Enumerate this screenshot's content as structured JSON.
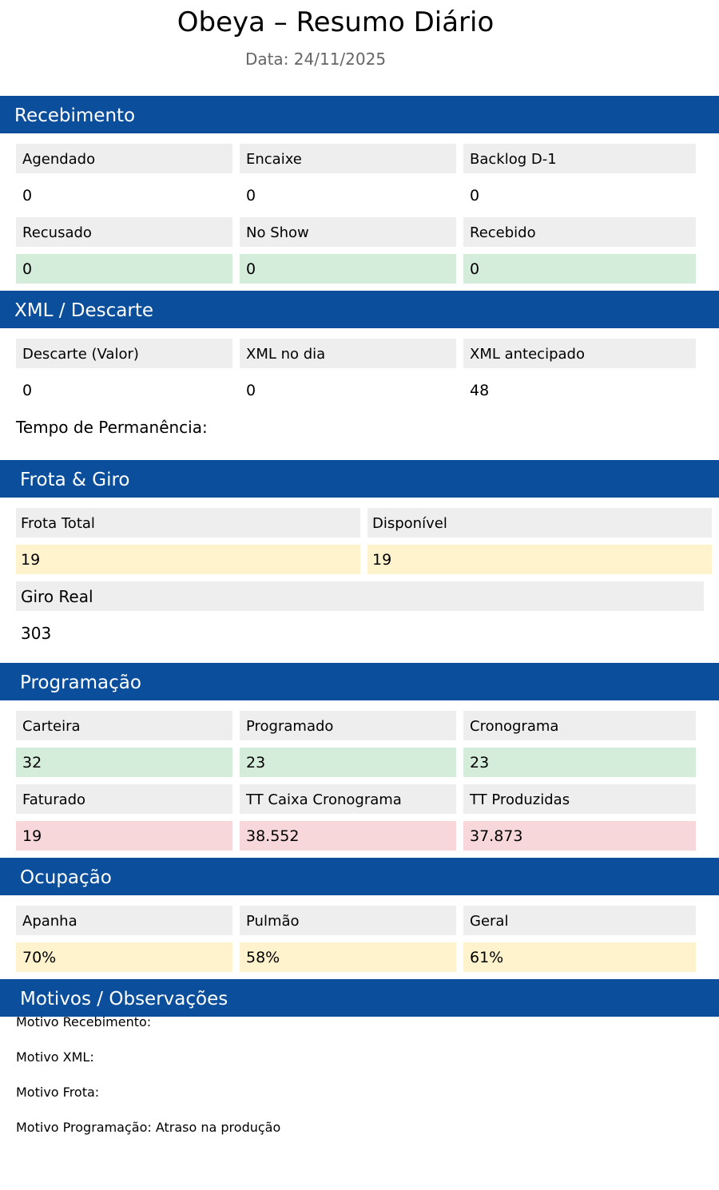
{
  "header": {
    "title": "Obeya – Resumo Diário",
    "date": "Data: 24/11/2025"
  },
  "recebimento": {
    "title": "Recebimento",
    "agendado": {
      "label": "Agendado",
      "value": "0"
    },
    "encaixe": {
      "label": "Encaixe",
      "value": "0"
    },
    "backlog": {
      "label": "Backlog D-1",
      "value": "0"
    },
    "recusado": {
      "label": "Recusado",
      "value": "0"
    },
    "no_show": {
      "label": "No Show",
      "value": "0"
    },
    "recebido": {
      "label": "Recebido",
      "value": "0"
    }
  },
  "xml": {
    "title": "XML / Descarte",
    "descarte": {
      "label": "Descarte (Valor)",
      "value": "0"
    },
    "xml_dia": {
      "label": "XML no dia",
      "value": "0"
    },
    "xml_antecipado": {
      "label": "XML antecipado",
      "value": "48"
    },
    "tempo": "Tempo de Permanência:"
  },
  "frota": {
    "title": "Frota & Giro",
    "total": {
      "label": "Frota Total",
      "value": "19"
    },
    "disponivel": {
      "label": "Disponível",
      "value": "19"
    },
    "giro": {
      "label": "Giro Real",
      "value": "303"
    }
  },
  "programacao": {
    "title": "Programação",
    "carteira": {
      "label": "Carteira",
      "value": "32"
    },
    "programado": {
      "label": "Programado",
      "value": "23"
    },
    "cronograma": {
      "label": "Cronograma",
      "value": "23"
    },
    "faturado": {
      "label": "Faturado",
      "value": "19"
    },
    "tt_caixa": {
      "label": "TT Caixa Cronograma",
      "value": "38.552"
    },
    "tt_produzidas": {
      "label": "TT Produzidas",
      "value": "37.873"
    }
  },
  "ocupacao": {
    "title": "Ocupação",
    "apanha": {
      "label": "Apanha",
      "value": "70%"
    },
    "pulmao": {
      "label": "Pulmão",
      "value": "58%"
    },
    "geral": {
      "label": "Geral",
      "value": "61%"
    }
  },
  "motivos": {
    "title": "Motivos / Observações",
    "recebimento": "Motivo Recebimento:",
    "xml": "Motivo XML:",
    "frota": "Motivo Frota:",
    "programacao": "Motivo Programação: Atraso na produção"
  },
  "colors": {
    "section_bar": "#0b4f9c",
    "label_bg": "#eeeeee",
    "green": "#d4eddb",
    "yellow": "#fff3cd",
    "red": "#f8d7da"
  }
}
